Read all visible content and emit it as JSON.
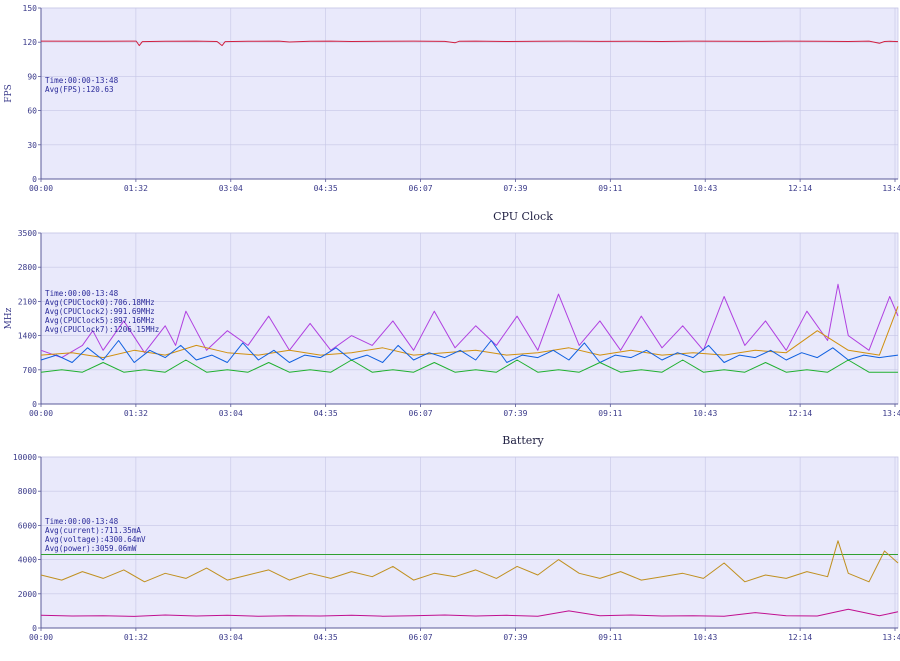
{
  "chart_data": [
    {
      "type": "line",
      "title": "",
      "ylabel": "FPS",
      "ylim": [
        0,
        150
      ],
      "yticks": [
        0,
        30,
        60,
        90,
        120,
        150
      ],
      "xtick_labels": [
        "00:00",
        "01:32",
        "03:04",
        "04:35",
        "06:07",
        "07:39",
        "09:11",
        "10:43",
        "12:14",
        "13:4"
      ],
      "x_range_seconds": [
        0,
        828
      ],
      "annotations": [
        "Time:00:00-13:48",
        "Avg(FPS):120.63"
      ],
      "series": [
        {
          "color": "#d02040",
          "x": [
            0,
            60,
            92,
            95,
            98,
            120,
            150,
            170,
            175,
            178,
            200,
            230,
            240,
            260,
            280,
            300,
            330,
            360,
            390,
            400,
            404,
            420,
            450,
            480,
            510,
            540,
            570,
            600,
            630,
            660,
            690,
            720,
            750,
            780,
            800,
            810,
            815,
            820,
            828
          ],
          "y": [
            121,
            120.8,
            121,
            117,
            120.5,
            120.8,
            121,
            120.6,
            117,
            120.5,
            120.8,
            121,
            120.2,
            120.8,
            121,
            120.6,
            120.8,
            121,
            120.7,
            119.5,
            120.8,
            121,
            120.6,
            120.8,
            121,
            120.7,
            120.9,
            120.6,
            121,
            120.8,
            120.7,
            121,
            120.8,
            120.6,
            121,
            119,
            120.6,
            120.8,
            120.5
          ]
        }
      ]
    },
    {
      "type": "line",
      "title": "CPU Clock",
      "ylabel": "MHz",
      "ylim": [
        0,
        3500
      ],
      "yticks": [
        0,
        700,
        1400,
        2100,
        2800,
        3500
      ],
      "xtick_labels": [
        "00:00",
        "01:32",
        "03:04",
        "04:35",
        "06:07",
        "07:39",
        "09:11",
        "10:43",
        "12:14",
        "13:4"
      ],
      "x_range_seconds": [
        0,
        828
      ],
      "annotations": [
        "Time:00:00-13:48",
        "Avg(CPUClock0):706.18MHz",
        "Avg(CPUClock2):991.69MHz",
        "Avg(CPUClock5):897.16MHz",
        "Avg(CPUClock7):1206.15MHz"
      ],
      "series": [
        {
          "name": "CPUClock7",
          "color": "#b040e0",
          "x": [
            0,
            20,
            40,
            50,
            60,
            80,
            100,
            120,
            130,
            140,
            160,
            180,
            200,
            220,
            240,
            260,
            280,
            300,
            320,
            340,
            360,
            380,
            400,
            420,
            440,
            460,
            480,
            500,
            520,
            540,
            560,
            580,
            600,
            620,
            640,
            660,
            680,
            700,
            720,
            740,
            760,
            770,
            780,
            800,
            820,
            828
          ],
          "y": [
            1100,
            950,
            1200,
            1500,
            1100,
            1700,
            1050,
            1600,
            1200,
            1900,
            1100,
            1500,
            1200,
            1800,
            1100,
            1650,
            1100,
            1400,
            1200,
            1700,
            1100,
            1900,
            1150,
            1600,
            1200,
            1800,
            1100,
            2250,
            1200,
            1700,
            1100,
            1800,
            1150,
            1600,
            1100,
            2200,
            1200,
            1700,
            1100,
            1900,
            1300,
            2450,
            1400,
            1100,
            2200,
            1800
          ]
        },
        {
          "name": "CPUClock5",
          "color": "#d09010",
          "x": [
            0,
            30,
            60,
            90,
            120,
            150,
            180,
            210,
            240,
            270,
            300,
            330,
            360,
            390,
            420,
            450,
            480,
            510,
            540,
            570,
            600,
            630,
            660,
            690,
            720,
            750,
            780,
            810,
            828
          ],
          "y": [
            1000,
            1050,
            950,
            1100,
            1000,
            1200,
            1050,
            1000,
            1100,
            1000,
            1050,
            1150,
            1000,
            1050,
            1100,
            1000,
            1050,
            1150,
            1000,
            1100,
            1000,
            1050,
            1000,
            1100,
            1050,
            1500,
            1100,
            1000,
            2000
          ]
        },
        {
          "name": "CPUClock2",
          "color": "#1060e0",
          "x": [
            0,
            15,
            30,
            45,
            60,
            75,
            90,
            105,
            120,
            135,
            150,
            165,
            180,
            195,
            210,
            225,
            240,
            255,
            270,
            285,
            300,
            315,
            330,
            345,
            360,
            375,
            390,
            405,
            420,
            435,
            450,
            465,
            480,
            495,
            510,
            525,
            540,
            555,
            570,
            585,
            600,
            615,
            630,
            645,
            660,
            675,
            690,
            705,
            720,
            735,
            750,
            765,
            780,
            795,
            810,
            828
          ],
          "y": [
            900,
            1000,
            850,
            1150,
            900,
            1300,
            850,
            1100,
            950,
            1200,
            900,
            1000,
            850,
            1250,
            900,
            1100,
            850,
            1000,
            950,
            1150,
            900,
            1000,
            850,
            1200,
            900,
            1050,
            950,
            1100,
            900,
            1300,
            850,
            1000,
            950,
            1100,
            900,
            1250,
            850,
            1000,
            950,
            1100,
            900,
            1050,
            950,
            1200,
            850,
            1000,
            950,
            1100,
            900,
            1050,
            950,
            1150,
            900,
            1000,
            950,
            1000
          ]
        },
        {
          "name": "CPUClock0",
          "color": "#20b030",
          "x": [
            0,
            20,
            40,
            60,
            80,
            100,
            120,
            140,
            160,
            180,
            200,
            220,
            240,
            260,
            280,
            300,
            320,
            340,
            360,
            380,
            400,
            420,
            440,
            460,
            480,
            500,
            520,
            540,
            560,
            580,
            600,
            620,
            640,
            660,
            680,
            700,
            720,
            740,
            760,
            780,
            800,
            828
          ],
          "y": [
            650,
            700,
            650,
            850,
            650,
            700,
            650,
            900,
            650,
            700,
            650,
            850,
            650,
            700,
            650,
            900,
            650,
            700,
            650,
            850,
            650,
            700,
            650,
            900,
            650,
            700,
            650,
            850,
            650,
            700,
            650,
            900,
            650,
            700,
            650,
            850,
            650,
            700,
            650,
            900,
            650,
            650
          ]
        }
      ]
    },
    {
      "type": "line",
      "title": "Battery",
      "ylabel": "",
      "ylim": [
        0,
        10000
      ],
      "yticks": [
        0,
        2000,
        4000,
        6000,
        8000,
        10000
      ],
      "xtick_labels": [
        "00:00",
        "01:32",
        "03:04",
        "04:35",
        "06:07",
        "07:39",
        "09:11",
        "10:43",
        "12:14",
        "13:4"
      ],
      "x_range_seconds": [
        0,
        828
      ],
      "annotations": [
        "Time:00:00-13:48",
        "Avg(current):711.35mA",
        "Avg(voltage):4300.64mV",
        "Avg(power):3059.06mW"
      ],
      "series": [
        {
          "name": "voltage",
          "color": "#30a030",
          "x": [
            0,
            828
          ],
          "y": [
            4300,
            4300
          ]
        },
        {
          "name": "power",
          "color": "#c09020",
          "x": [
            0,
            20,
            40,
            60,
            80,
            100,
            120,
            140,
            160,
            180,
            200,
            220,
            240,
            260,
            280,
            300,
            320,
            340,
            360,
            380,
            400,
            420,
            440,
            460,
            480,
            500,
            520,
            540,
            560,
            580,
            600,
            620,
            640,
            660,
            680,
            700,
            720,
            740,
            760,
            770,
            780,
            800,
            815,
            828
          ],
          "y": [
            3100,
            2800,
            3300,
            2900,
            3400,
            2700,
            3200,
            2900,
            3500,
            2800,
            3100,
            3400,
            2800,
            3200,
            2900,
            3300,
            3000,
            3600,
            2800,
            3200,
            3000,
            3400,
            2900,
            3600,
            3100,
            4000,
            3200,
            2900,
            3300,
            2800,
            3000,
            3200,
            2900,
            3800,
            2700,
            3100,
            2900,
            3300,
            3000,
            5100,
            3200,
            2700,
            4500,
            3800
          ]
        },
        {
          "name": "current",
          "color": "#c01090",
          "x": [
            0,
            30,
            60,
            90,
            120,
            150,
            180,
            210,
            240,
            270,
            300,
            330,
            360,
            390,
            420,
            450,
            480,
            510,
            540,
            570,
            600,
            630,
            660,
            690,
            720,
            750,
            780,
            810,
            828
          ],
          "y": [
            750,
            700,
            720,
            680,
            760,
            700,
            740,
            690,
            720,
            700,
            750,
            690,
            720,
            760,
            700,
            740,
            690,
            1000,
            720,
            760,
            700,
            720,
            690,
            900,
            720,
            700,
            1100,
            720,
            950
          ]
        }
      ]
    }
  ]
}
